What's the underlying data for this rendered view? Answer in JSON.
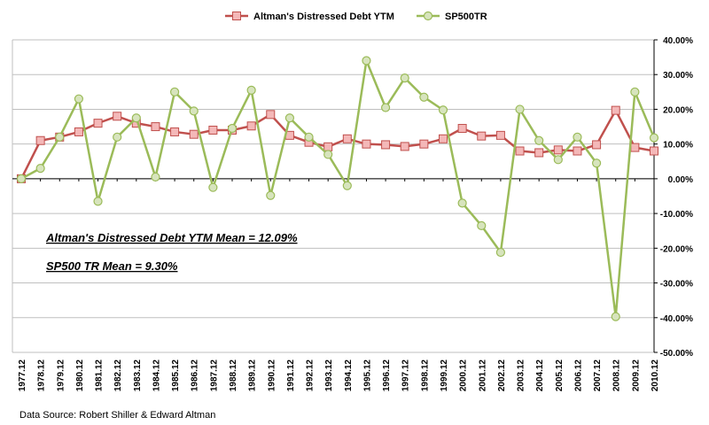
{
  "chart_data": {
    "type": "line",
    "title": "",
    "xlabel": "",
    "ylabel": "",
    "ylim": [
      -0.5,
      0.4
    ],
    "y_ticks": [
      "40.00%",
      "30.00%",
      "20.00%",
      "10.00%",
      "0.00%",
      "-10.00%",
      "-20.00%",
      "-30.00%",
      "-40.00%",
      "-50.00%"
    ],
    "y_tick_values": [
      0.4,
      0.3,
      0.2,
      0.1,
      0.0,
      -0.1,
      -0.2,
      -0.3,
      -0.4,
      -0.5
    ],
    "grid": true,
    "legend_position": "top-center",
    "categories": [
      "1977.12",
      "1978.12",
      "1979.12",
      "1980.12",
      "1981.12",
      "1982.12",
      "1983.12",
      "1984.12",
      "1985.12",
      "1986.12",
      "1987.12",
      "1988.12",
      "1989.12",
      "1990.12",
      "1991.12",
      "1992.12",
      "1993.12",
      "1994.12",
      "1995.12",
      "1996.12",
      "1997.12",
      "1998.12",
      "1999.12",
      "2000.12",
      "2001.12",
      "2002.12",
      "2003.12",
      "2004.12",
      "2005.12",
      "2006.12",
      "2007.12",
      "2008.12",
      "2009.12",
      "2010.12"
    ],
    "series": [
      {
        "name": "Altman's Distressed Debt YTM",
        "color": "#c0504d",
        "fill": "#f4b8b8",
        "marker": "square",
        "values": [
          0.0,
          0.11,
          0.12,
          0.135,
          0.16,
          0.18,
          0.16,
          0.15,
          0.135,
          0.128,
          0.14,
          0.14,
          0.152,
          0.185,
          0.125,
          0.105,
          0.092,
          0.115,
          0.1,
          0.098,
          0.093,
          0.1,
          0.115,
          0.145,
          0.123,
          0.125,
          0.08,
          0.075,
          0.083,
          0.08,
          0.098,
          0.197,
          0.09,
          0.08
        ]
      },
      {
        "name": "SP500TR",
        "color": "#9bbb59",
        "fill": "#d7e4bd",
        "marker": "circle",
        "values": [
          0.0,
          0.03,
          0.12,
          0.23,
          -0.065,
          0.12,
          0.175,
          0.005,
          0.25,
          0.195,
          -0.025,
          0.145,
          0.255,
          -0.048,
          0.175,
          0.12,
          0.07,
          -0.02,
          0.34,
          0.205,
          0.29,
          0.235,
          0.198,
          -0.07,
          -0.135,
          -0.212,
          0.2,
          0.11,
          0.055,
          0.12,
          0.045,
          -0.397,
          0.25,
          0.118
        ]
      }
    ],
    "annotations": [
      "Altman's Distressed Debt YTM  Mean = 12.09%",
      "SP500 TR Mean = 9.30%"
    ],
    "source": "Data Source: Robert Shiller & Edward Altman"
  }
}
